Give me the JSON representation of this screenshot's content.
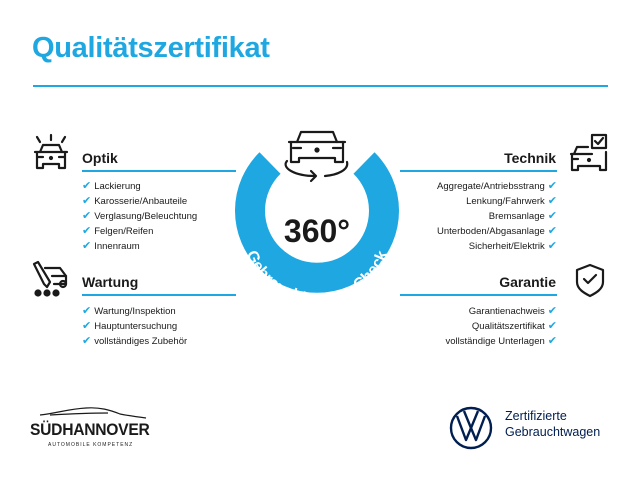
{
  "title": "Qualitätszertifikat",
  "colors": {
    "accent": "#1ea7e1",
    "text": "#1a1a1a",
    "logo_navy": "#001e50"
  },
  "check_glyph": "✔",
  "center_badge": {
    "value": "360°",
    "arc_text": "Gebrauchtwagen-Check",
    "icon": "car-rotate-icon"
  },
  "sections": {
    "optik": {
      "heading": "Optik",
      "icon": "car-lights-icon",
      "items": [
        "Lackierung",
        "Karosserie/Anbauteile",
        "Verglasung/Beleuchtung",
        "Felgen/Reifen",
        "Innenraum"
      ]
    },
    "wartung": {
      "heading": "Wartung",
      "icon": "service-tools-icon",
      "items": [
        "Wartung/Inspektion",
        "Hauptuntersuchung",
        "vollständiges Zubehör"
      ]
    },
    "technik": {
      "heading": "Technik",
      "icon": "car-checklist-icon",
      "items": [
        "Aggregate/Antriebsstrang",
        "Lenkung/Fahrwerk",
        "Bremsanlage",
        "Unterboden/Abgasanlage",
        "Sicherheit/Elektrik"
      ]
    },
    "garantie": {
      "heading": "Garantie",
      "icon": "shield-check-icon",
      "items": [
        "Garantienachweis",
        "Qualitätszertifikat",
        "vollständige Unterlagen"
      ]
    }
  },
  "footer": {
    "dealer_logo": {
      "name": "SÜDHANNOVER",
      "tagline": "AUTOMOBILE KOMPETENZ"
    },
    "vw_logo": {
      "line1": "Zertifizierte",
      "line2": "Gebrauchtwagen"
    }
  }
}
